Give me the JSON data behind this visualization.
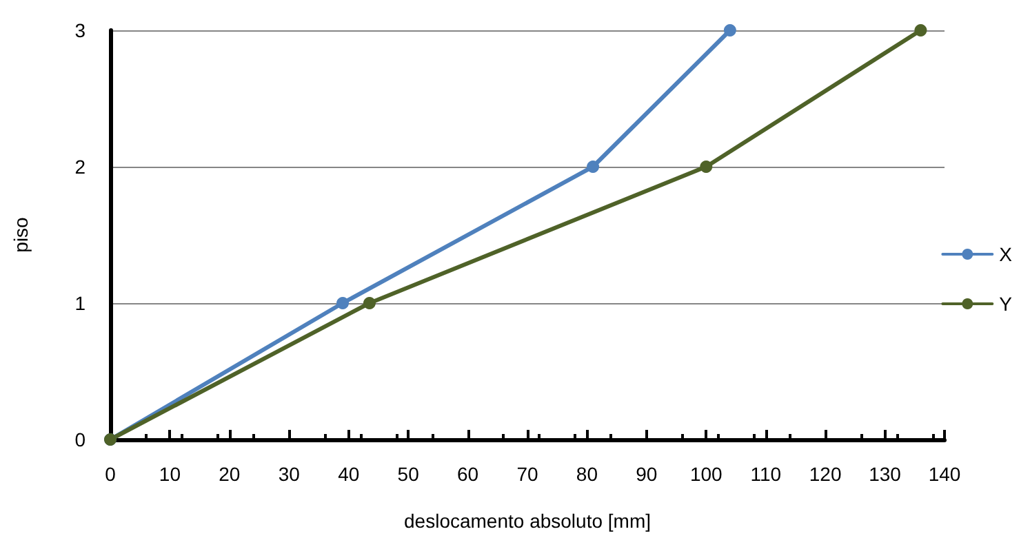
{
  "chart_data": {
    "type": "line",
    "xlabel": "deslocamento absoluto [mm]",
    "ylabel": "piso",
    "xlim": [
      0,
      140
    ],
    "xticks": [
      0,
      10,
      20,
      30,
      40,
      50,
      60,
      70,
      80,
      90,
      100,
      110,
      120,
      130,
      140
    ],
    "ylim": [
      0,
      3
    ],
    "yticks": [
      0,
      1,
      2,
      3
    ],
    "grid": "y",
    "legend": "right",
    "marker": "circle",
    "line_style": "solid",
    "series": [
      {
        "name": "X",
        "color": "#4f81bd",
        "x": [
          0,
          39,
          81,
          104
        ],
        "values": [
          0,
          1,
          2,
          3
        ]
      },
      {
        "name": "Y",
        "color": "#4f6228",
        "x": [
          0,
          43.5,
          100,
          136
        ],
        "values": [
          0,
          1,
          2,
          3
        ]
      }
    ]
  }
}
